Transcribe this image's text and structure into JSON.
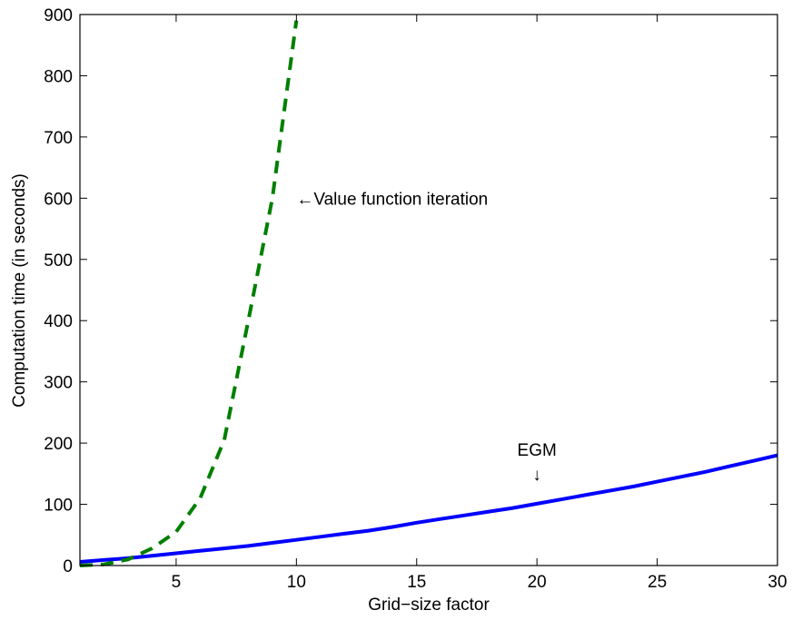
{
  "chart_data": {
    "type": "line",
    "title": "",
    "xlabel": "Grid−size factor",
    "ylabel": "Computation time (in seconds)",
    "xlim": [
      1,
      30
    ],
    "ylim": [
      0,
      900
    ],
    "x_ticks": [
      5,
      10,
      15,
      20,
      25,
      30
    ],
    "y_ticks": [
      0,
      100,
      200,
      300,
      400,
      500,
      600,
      700,
      800,
      900
    ],
    "grid": false,
    "series": [
      {
        "name": "EGM",
        "color": "#0000ff",
        "style": "solid",
        "x": [
          1,
          2,
          3,
          4,
          5,
          6,
          7,
          8,
          9,
          10,
          11,
          12,
          13,
          14,
          15,
          16,
          17,
          18,
          19,
          20,
          21,
          22,
          23,
          24,
          25,
          26,
          27,
          28,
          29,
          30
        ],
        "y": [
          6,
          9,
          12,
          16,
          20,
          24,
          28,
          32,
          37,
          42,
          47,
          52,
          57,
          63,
          70,
          76,
          82,
          88,
          94,
          101,
          108,
          115,
          122,
          129,
          137,
          145,
          153,
          162,
          171,
          180
        ]
      },
      {
        "name": "Value function iteration",
        "color": "#007f00",
        "style": "dashed",
        "x": [
          1,
          2,
          3,
          4,
          5,
          6,
          7,
          8,
          9,
          10
        ],
        "y": [
          0,
          2,
          10,
          28,
          55,
          110,
          205,
          400,
          600,
          890
        ]
      }
    ],
    "annotations": [
      {
        "text": "←Value function iteration",
        "x": 10,
        "y": 600
      },
      {
        "text": "EGM",
        "x": 20,
        "y": 190
      },
      {
        "text": "↓",
        "x": 20,
        "y": 150
      }
    ]
  }
}
